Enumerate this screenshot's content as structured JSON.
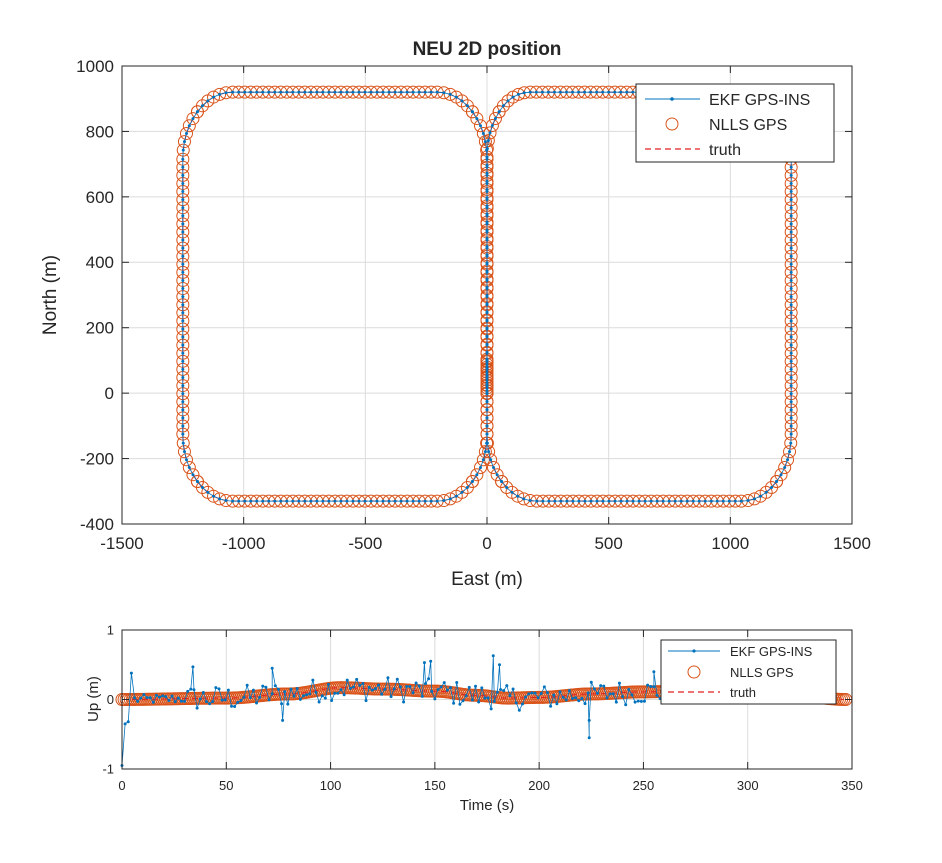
{
  "colors": {
    "ekf": "#0072BD",
    "nlls": "#D95319",
    "truth": "#E02020",
    "axis": "#262626",
    "grid": "#DCDCDC"
  },
  "chart_data": [
    {
      "type": "scatter",
      "title": "NEU 2D position",
      "xlabel": "East (m)",
      "ylabel": "North (m)",
      "xlim": [
        -1500,
        1500
      ],
      "ylim": [
        -400,
        1000
      ],
      "xticks": [
        -1500,
        -1000,
        -500,
        0,
        500,
        1000,
        1500
      ],
      "yticks": [
        -400,
        -200,
        0,
        200,
        400,
        600,
        800,
        1000
      ],
      "xtick_labels": [
        "-1500",
        "-1000",
        "-500",
        "0",
        "500",
        "1000",
        "1500"
      ],
      "ytick_labels": [
        "-400",
        "-200",
        "0",
        "200",
        "400",
        "600",
        "800",
        "1000"
      ],
      "grid": true,
      "legend_position": "top-right",
      "legend": [
        "EKF GPS-INS",
        "NLLS GPS",
        "truth"
      ],
      "path": {
        "description": "figure-eight loop starting near origin",
        "waypoints_east_north": [
          [
            0,
            0
          ],
          [
            0,
            800
          ],
          [
            100,
            920
          ],
          [
            1130,
            920
          ],
          [
            1250,
            800
          ],
          [
            1250,
            -210
          ],
          [
            1130,
            -330
          ],
          [
            120,
            -330
          ],
          [
            0,
            -210
          ],
          [
            0,
            800
          ],
          [
            -120,
            920
          ],
          [
            -1130,
            920
          ],
          [
            -1250,
            800
          ],
          [
            -1250,
            -210
          ],
          [
            -1130,
            -330
          ],
          [
            -120,
            -330
          ],
          [
            0,
            -210
          ],
          [
            0,
            0
          ]
        ],
        "corner_radius_m": 120,
        "sample_spacing_m": 25
      },
      "series": [
        {
          "name": "EKF GPS-INS",
          "style": "line with dot markers"
        },
        {
          "name": "NLLS GPS",
          "style": "open circle markers"
        },
        {
          "name": "truth",
          "style": "dashed line"
        }
      ]
    },
    {
      "type": "scatter",
      "title": "",
      "xlabel": "Time (s)",
      "ylabel": "Up (m)",
      "xlim": [
        0,
        350
      ],
      "ylim": [
        -1,
        1
      ],
      "xticks": [
        0,
        50,
        100,
        150,
        200,
        250,
        300,
        350
      ],
      "yticks": [
        -1,
        0,
        1
      ],
      "xtick_labels": [
        "0",
        "50",
        "100",
        "150",
        "200",
        "250",
        "300",
        "350"
      ],
      "ytick_labels": [
        "-1",
        "0",
        "1"
      ],
      "grid": true,
      "legend_position": "top-right",
      "legend": [
        "EKF GPS-INS",
        "NLLS GPS",
        "truth"
      ],
      "truth_profile": {
        "t": [
          0,
          50,
          80,
          105,
          125,
          150,
          170,
          185,
          200,
          225,
          250,
          280,
          300,
          330,
          347
        ],
        "up": [
          0.0,
          0.02,
          0.08,
          0.17,
          0.15,
          0.12,
          0.06,
          0.02,
          0.03,
          0.08,
          0.11,
          0.13,
          0.09,
          0.03,
          0.0
        ]
      },
      "nlls_sample_interval_s": 1,
      "ekf_noise": {
        "sample_interval_s": 1.5,
        "start_values": [
          -0.95,
          -0.35,
          -0.32,
          0.38
        ],
        "spikes": [
          [
            34,
            0.47
          ],
          [
            72,
            0.45
          ],
          [
            77,
            -0.3
          ],
          [
            145,
            0.53
          ],
          [
            148,
            0.55
          ],
          [
            178,
            0.63
          ],
          [
            181,
            0.5
          ],
          [
            224,
            -0.55
          ],
          [
            255,
            0.4
          ],
          [
            260,
            0.38
          ],
          [
            224,
            -0.3
          ]
        ]
      }
    }
  ]
}
